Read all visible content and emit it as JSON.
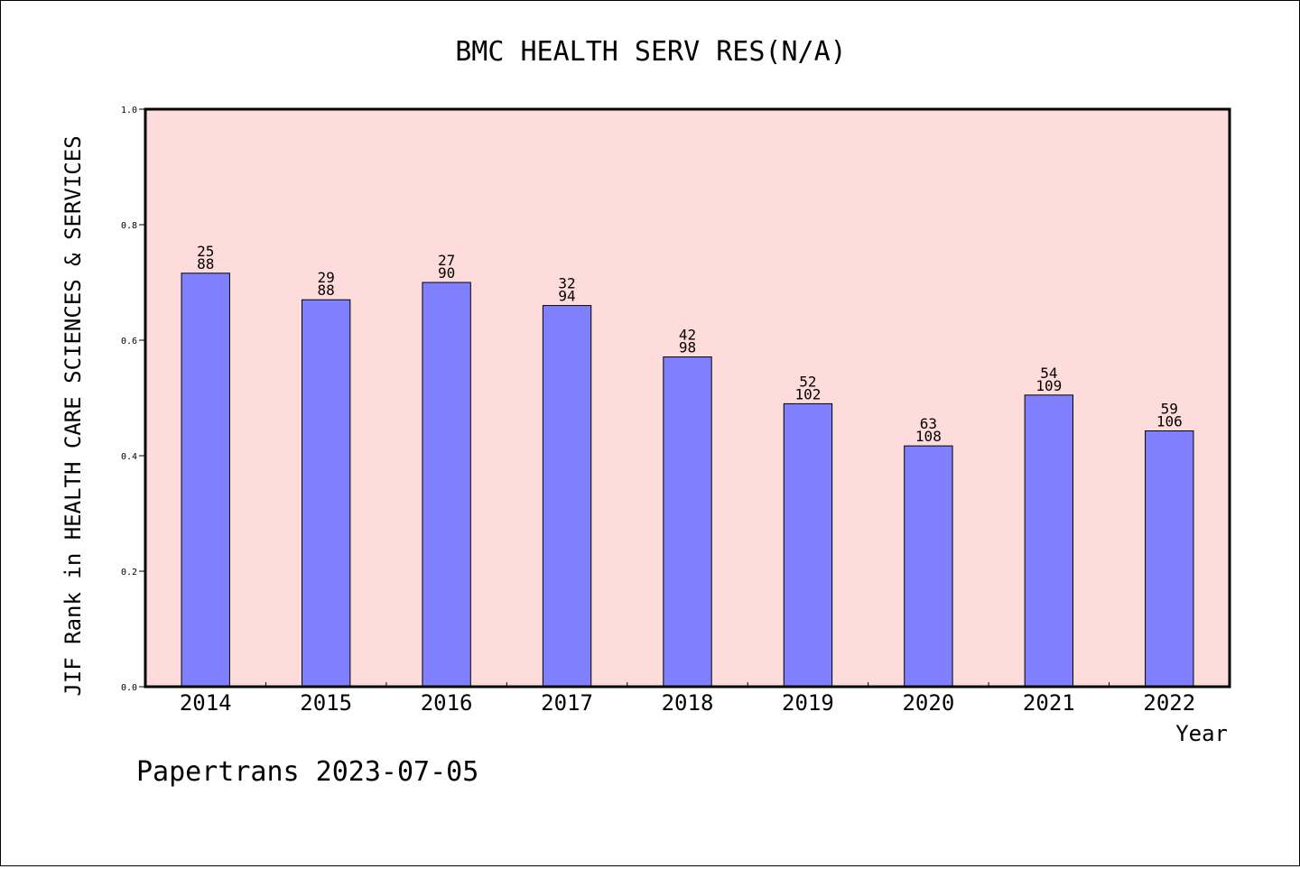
{
  "chart_data": {
    "type": "bar",
    "title": "BMC HEALTH SERV RES(N/A)",
    "xlabel": "Year",
    "ylabel": "JIF Rank in HEALTH CARE SCIENCES & SERVICES",
    "ylim": [
      0,
      1.0
    ],
    "yticks": [
      "0.0",
      "0.2",
      "0.4",
      "0.6",
      "0.8",
      "1.0"
    ],
    "grid": false,
    "categories": [
      "2014",
      "2015",
      "2016",
      "2017",
      "2018",
      "2019",
      "2020",
      "2021",
      "2022"
    ],
    "values": [
      0.716,
      0.67,
      0.7,
      0.66,
      0.571,
      0.49,
      0.417,
      0.505,
      0.443
    ],
    "ranks": [
      "25",
      "29",
      "27",
      "32",
      "42",
      "52",
      "63",
      "54",
      "59"
    ],
    "totals": [
      "88",
      "88",
      "90",
      "94",
      "98",
      "102",
      "108",
      "109",
      "106"
    ],
    "footer": "Papertrans 2023-07-05"
  },
  "colors": {
    "plot_background": "#ffdcdc",
    "bar_fill": "#8080ff",
    "bar_stroke": "#000000",
    "axis": "#000000"
  }
}
